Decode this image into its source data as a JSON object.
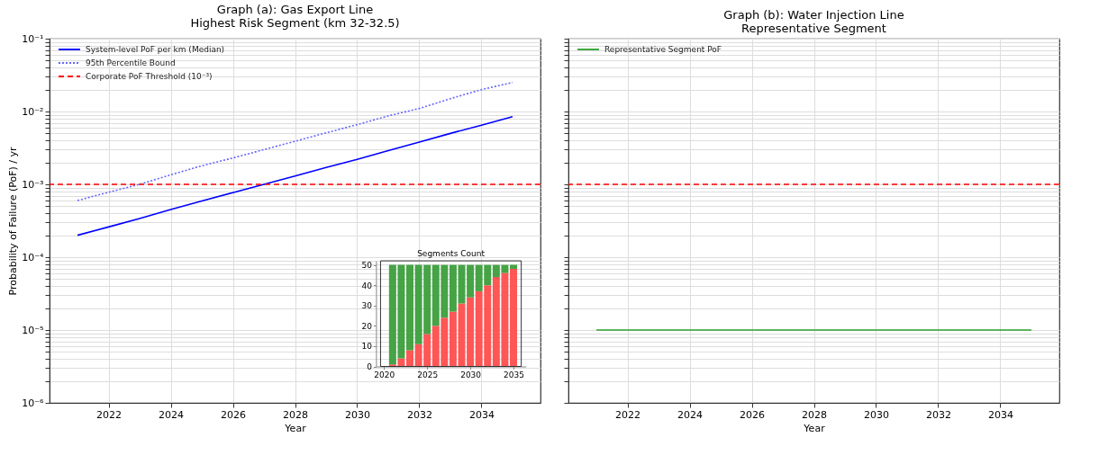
{
  "chart_data": [
    {
      "type": "line",
      "title": "Graph (a): Gas Export Line\nHighest Risk Segment (km 32-32.5)",
      "xlabel": "Year",
      "ylabel": "Probability of Failure (PoF) / yr",
      "x": [
        2021,
        2022,
        2023,
        2024,
        2025,
        2026,
        2027,
        2028,
        2029,
        2030,
        2031,
        2032,
        2033,
        2034,
        2035
      ],
      "series": [
        {
          "name": "System-level PoF per km (Median)",
          "color": "#0000ff",
          "line_style": "solid",
          "values": [
            0.0002,
            0.00026,
            0.00034,
            0.00045,
            0.00059,
            0.00077,
            0.001,
            0.0013,
            0.0017,
            0.0022,
            0.0029,
            0.0038,
            0.005,
            0.0065,
            0.0085
          ]
        },
        {
          "name": "95th Percentile Bound",
          "color": "#6666ff",
          "line_style": "dotted",
          "values": [
            0.0006,
            0.00078,
            0.001,
            0.00135,
            0.0018,
            0.0023,
            0.003,
            0.0039,
            0.0051,
            0.0066,
            0.0087,
            0.011,
            0.015,
            0.02,
            0.025
          ]
        }
      ],
      "ref_lines": [
        {
          "axis": "y",
          "value": 0.001,
          "label": "Corporate PoF Threshold (10⁻³)",
          "color": "#ff0000",
          "line_style": "dashed"
        }
      ],
      "xlim": [
        2020.1,
        2035.9
      ],
      "xticks": [
        2022,
        2024,
        2026,
        2028,
        2030,
        2032,
        2034
      ],
      "ylim": [
        1e-06,
        0.1
      ],
      "yticks": [
        {
          "value": 1e-06,
          "label": "10⁻⁶"
        },
        {
          "value": 2e-06,
          "label": null
        },
        {
          "value": 3e-06,
          "label": null
        },
        {
          "value": 4e-06,
          "label": null
        },
        {
          "value": 5e-06,
          "label": null
        },
        {
          "value": 6e-06,
          "label": null
        },
        {
          "value": 7e-06,
          "label": null
        },
        {
          "value": 8e-06,
          "label": null
        },
        {
          "value": 9e-06,
          "label": null
        },
        {
          "value": 1e-05,
          "label": "10⁻⁵"
        },
        {
          "value": 2e-05,
          "label": null
        },
        {
          "value": 3e-05,
          "label": null
        },
        {
          "value": 4e-05,
          "label": null
        },
        {
          "value": 5e-05,
          "label": null
        },
        {
          "value": 6e-05,
          "label": null
        },
        {
          "value": 7e-05,
          "label": null
        },
        {
          "value": 8e-05,
          "label": null
        },
        {
          "value": 9e-05,
          "label": null
        },
        {
          "value": 0.0001,
          "label": "10⁻⁴"
        },
        {
          "value": 0.0002,
          "label": null
        },
        {
          "value": 0.0003,
          "label": null
        },
        {
          "value": 0.0004,
          "label": null
        },
        {
          "value": 0.0005,
          "label": null
        },
        {
          "value": 0.0006,
          "label": null
        },
        {
          "value": 0.0007,
          "label": null
        },
        {
          "value": 0.0008,
          "label": null
        },
        {
          "value": 0.0009,
          "label": null
        },
        {
          "value": 0.001,
          "label": "10⁻³"
        },
        {
          "value": 0.002,
          "label": null
        },
        {
          "value": 0.003,
          "label": null
        },
        {
          "value": 0.004,
          "label": null
        },
        {
          "value": 0.005,
          "label": null
        },
        {
          "value": 0.006,
          "label": null
        },
        {
          "value": 0.007,
          "label": null
        },
        {
          "value": 0.008,
          "label": null
        },
        {
          "value": 0.009,
          "label": null
        },
        {
          "value": 0.01,
          "label": "10⁻²"
        },
        {
          "value": 0.02,
          "label": null
        },
        {
          "value": 0.03,
          "label": null
        },
        {
          "value": 0.04,
          "label": null
        },
        {
          "value": 0.05,
          "label": null
        },
        {
          "value": 0.06,
          "label": null
        },
        {
          "value": 0.07,
          "label": null
        },
        {
          "value": 0.08,
          "label": null
        },
        {
          "value": 0.09,
          "label": null
        },
        {
          "value": 0.1,
          "label": "10⁻¹"
        }
      ],
      "log": "y",
      "grid": true,
      "legend": "top left"
    },
    {
      "type": "bar",
      "title": "Segments Count",
      "stacked": true,
      "x": [
        2021,
        2022,
        2023,
        2024,
        2025,
        2026,
        2027,
        2028,
        2029,
        2030,
        2031,
        2032,
        2033,
        2034,
        2035
      ],
      "series": [
        {
          "color": "#ff4d4d",
          "values": [
            1,
            4,
            8,
            11,
            16,
            20,
            24,
            27,
            31,
            34,
            37,
            40,
            44,
            46,
            48
          ]
        },
        {
          "color": "#3c9e3c",
          "values": [
            49,
            46,
            42,
            39,
            34,
            30,
            26,
            23,
            19,
            16,
            13,
            10,
            6,
            4,
            2
          ]
        }
      ],
      "xlim": [
        2019.6,
        2035.9
      ],
      "xticks": [
        2020,
        2025,
        2030,
        2035
      ],
      "ylim": [
        0,
        52
      ],
      "yticks": [
        0,
        10,
        20,
        30,
        40,
        50
      ],
      "grid": false
    },
    {
      "type": "line",
      "title": "Graph (b): Water Injection Line\nRepresentative Segment",
      "xlabel": "Year",
      "x": [
        2021,
        2035
      ],
      "series": [
        {
          "name": "Representative Segment PoF",
          "color": "#2ca02c",
          "line_style": "solid",
          "values": [
            1e-05,
            1e-05
          ]
        }
      ],
      "ref_lines": [
        {
          "axis": "y",
          "value": 0.001,
          "label": null,
          "color": "#ff0000",
          "line_style": "dashed"
        }
      ],
      "xlim": [
        2020.1,
        2035.9
      ],
      "xticks": [
        2022,
        2024,
        2026,
        2028,
        2030,
        2032,
        2034
      ],
      "ylim": [
        1e-06,
        0.1
      ],
      "yticks": [
        {
          "value": 1e-06,
          "label": null
        },
        {
          "value": 2e-06,
          "label": null
        },
        {
          "value": 3e-06,
          "label": null
        },
        {
          "value": 4e-06,
          "label": null
        },
        {
          "value": 5e-06,
          "label": null
        },
        {
          "value": 6e-06,
          "label": null
        },
        {
          "value": 7e-06,
          "label": null
        },
        {
          "value": 8e-06,
          "label": null
        },
        {
          "value": 9e-06,
          "label": null
        },
        {
          "value": 1e-05,
          "label": null
        },
        {
          "value": 2e-05,
          "label": null
        },
        {
          "value": 3e-05,
          "label": null
        },
        {
          "value": 4e-05,
          "label": null
        },
        {
          "value": 5e-05,
          "label": null
        },
        {
          "value": 6e-05,
          "label": null
        },
        {
          "value": 7e-05,
          "label": null
        },
        {
          "value": 8e-05,
          "label": null
        },
        {
          "value": 9e-05,
          "label": null
        },
        {
          "value": 0.0001,
          "label": null
        },
        {
          "value": 0.0002,
          "label": null
        },
        {
          "value": 0.0003,
          "label": null
        },
        {
          "value": 0.0004,
          "label": null
        },
        {
          "value": 0.0005,
          "label": null
        },
        {
          "value": 0.0006,
          "label": null
        },
        {
          "value": 0.0007,
          "label": null
        },
        {
          "value": 0.0008,
          "label": null
        },
        {
          "value": 0.0009,
          "label": null
        },
        {
          "value": 0.001,
          "label": null
        },
        {
          "value": 0.002,
          "label": null
        },
        {
          "value": 0.003,
          "label": null
        },
        {
          "value": 0.004,
          "label": null
        },
        {
          "value": 0.005,
          "label": null
        },
        {
          "value": 0.006,
          "label": null
        },
        {
          "value": 0.007,
          "label": null
        },
        {
          "value": 0.008,
          "label": null
        },
        {
          "value": 0.009,
          "label": null
        },
        {
          "value": 0.01,
          "label": null
        },
        {
          "value": 0.02,
          "label": null
        },
        {
          "value": 0.03,
          "label": null
        },
        {
          "value": 0.04,
          "label": null
        },
        {
          "value": 0.05,
          "label": null
        },
        {
          "value": 0.06,
          "label": null
        },
        {
          "value": 0.07,
          "label": null
        },
        {
          "value": 0.08,
          "label": null
        },
        {
          "value": 0.09,
          "label": null
        },
        {
          "value": 0.1,
          "label": null
        }
      ],
      "log": "y",
      "grid": true,
      "legend": "top left",
      "tick_labels": "x"
    }
  ]
}
